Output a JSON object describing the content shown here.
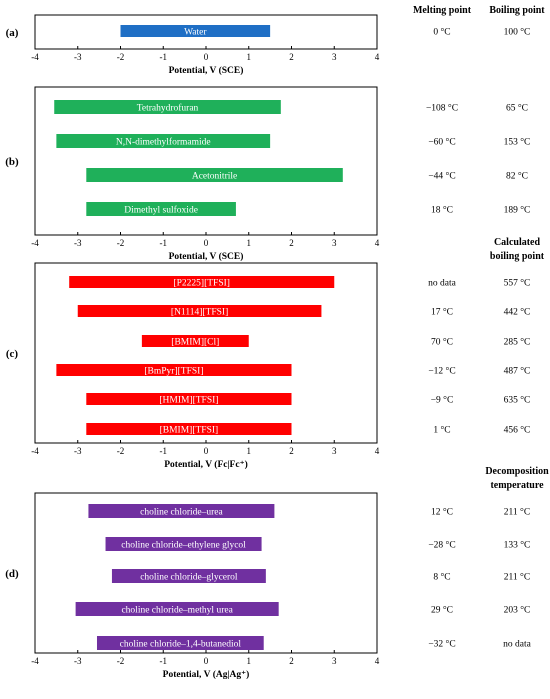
{
  "colors": {
    "water": "#1f6fc5",
    "molecular": "#1fb05a",
    "ionic_liquid": "#ff0000",
    "des": "#7030a0",
    "frame": "#000000",
    "bar_text": "#ffffff"
  },
  "chart_data": [
    {
      "type": "bar",
      "orientation": "horizontal-range",
      "panel": "(a)",
      "xlabel": "Potential, V (SCE)",
      "xlim": [
        -4,
        4
      ],
      "xticks": [
        "-4",
        "-3",
        "-2",
        "-1",
        "0",
        "1",
        "2",
        "3",
        "4"
      ],
      "grid": false,
      "header": [
        "Melting point",
        "Boiling point"
      ],
      "series": [
        {
          "label": "Water",
          "start": -2.0,
          "end": 1.5,
          "melting": "0 °C",
          "second": "100 °C"
        }
      ]
    },
    {
      "type": "bar",
      "orientation": "horizontal-range",
      "panel": "(b)",
      "xlabel": "Potential, V (SCE)",
      "xlim": [
        -4,
        4
      ],
      "xticks": [
        "-4",
        "-3",
        "-2",
        "-1",
        "0",
        "1",
        "2",
        "3",
        "4"
      ],
      "grid": false,
      "header": [],
      "series": [
        {
          "label": "Tetrahydrofuran",
          "start": -3.55,
          "end": 1.75,
          "melting": "−108 °C",
          "second": "65 °C"
        },
        {
          "label": "N,N-dimethylformamide",
          "start": -3.5,
          "end": 1.5,
          "melting": "−60 °C",
          "second": "153 °C"
        },
        {
          "label": "Acetonitrile",
          "start": -2.8,
          "end": 3.2,
          "melting": "−44 °C",
          "second": "82 °C"
        },
        {
          "label": "Dimethyl sulfoxide",
          "start": -2.8,
          "end": 0.7,
          "melting": "18 °C",
          "second": "189 °C"
        }
      ]
    },
    {
      "type": "bar",
      "orientation": "horizontal-range",
      "panel": "(c)",
      "xlabel": "Potential, V (Fc|Fc⁺)",
      "xlim": [
        -4,
        4
      ],
      "xticks": [
        "-4",
        "-3",
        "-2",
        "-1",
        "0",
        "1",
        "2",
        "3",
        "4"
      ],
      "grid": false,
      "header": [
        "Calculated",
        "boiling point"
      ],
      "series": [
        {
          "label": "[P2225][TFSI]",
          "start": -3.2,
          "end": 3.0,
          "melting": "no data",
          "second": "557 °C"
        },
        {
          "label": "[N1114][TFSI]",
          "start": -3.0,
          "end": 2.7,
          "melting": "17 °C",
          "second": "442 °C"
        },
        {
          "label": "[BMIM][Cl]",
          "start": -1.5,
          "end": 1.0,
          "melting": "70 °C",
          "second": "285 °C"
        },
        {
          "label": "[BmPyr][TFSI]",
          "start": -3.5,
          "end": 2.0,
          "melting": "−12 °C",
          "second": "487 °C"
        },
        {
          "label": "[HMIM][TFSI]",
          "start": -2.8,
          "end": 2.0,
          "melting": "−9 °C",
          "second": "635 °C"
        },
        {
          "label": "[BMIM][TFSI]",
          "start": -2.8,
          "end": 2.0,
          "melting": "1 °C",
          "second": "456 °C"
        }
      ]
    },
    {
      "type": "bar",
      "orientation": "horizontal-range",
      "panel": "(d)",
      "xlabel": "Potential, V (Ag|Ag⁺)",
      "xlim": [
        -4,
        4
      ],
      "xticks": [
        "-4",
        "-3",
        "-2",
        "-1",
        "0",
        "1",
        "2",
        "3",
        "4"
      ],
      "grid": false,
      "header": [
        "Decomposition",
        "temperature"
      ],
      "series": [
        {
          "label": "choline chloride–urea",
          "start": -2.75,
          "end": 1.6,
          "melting": "12 °C",
          "second": "211 °C"
        },
        {
          "label": "choline chloride–ethylene glycol",
          "start": -2.35,
          "end": 1.3,
          "melting": "−28 °C",
          "second": "133 °C"
        },
        {
          "label": "choline chloride–glycerol",
          "start": -2.2,
          "end": 1.4,
          "melting": "8 °C",
          "second": "211 °C"
        },
        {
          "label": "choline chloride–methyl urea",
          "start": -3.05,
          "end": 1.7,
          "melting": "29 °C",
          "second": "203 °C"
        },
        {
          "label": "choline chloride–1,4-butanediol",
          "start": -2.55,
          "end": 1.35,
          "melting": "−32 °C",
          "second": "no data"
        }
      ]
    }
  ]
}
